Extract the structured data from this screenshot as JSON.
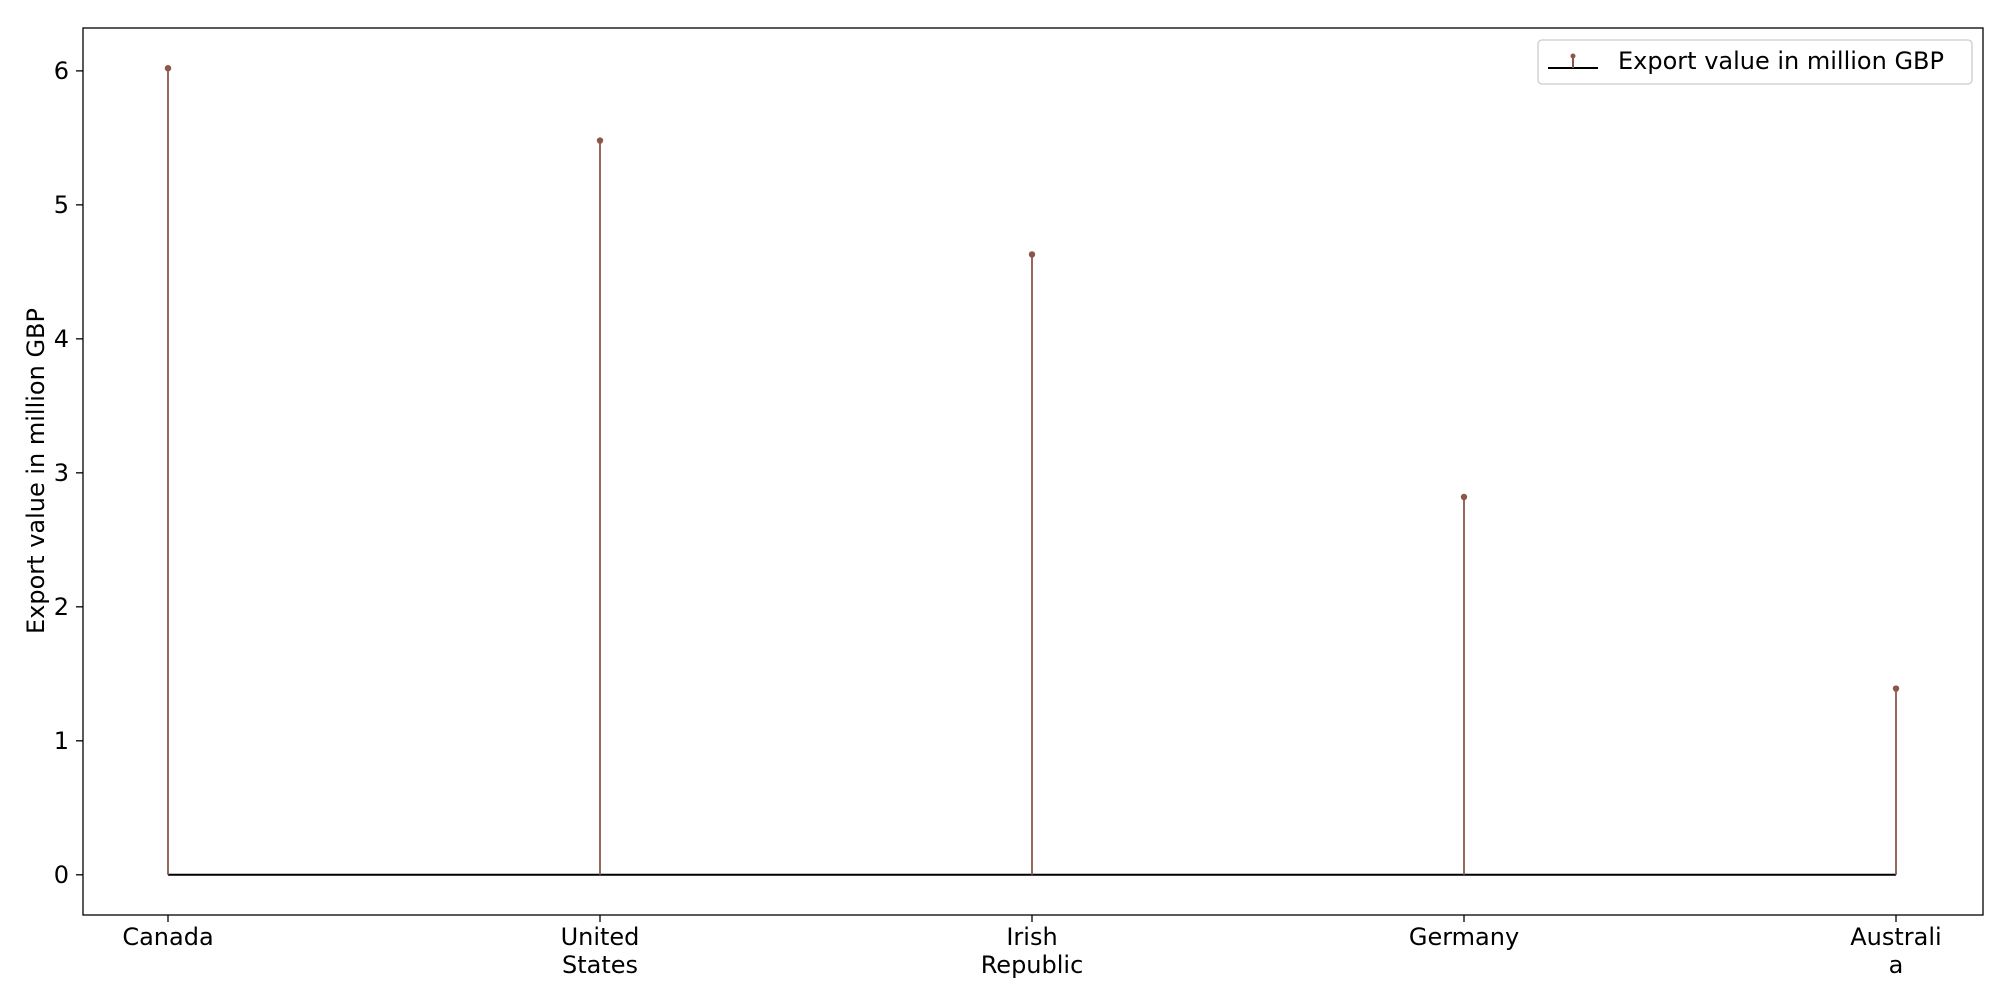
{
  "chart_data": {
    "type": "stem",
    "categories": [
      "Canada",
      "United States",
      "Irish Republic",
      "Germany",
      "Australia"
    ],
    "category_label_lines": [
      [
        "Canada"
      ],
      [
        "United",
        "States"
      ],
      [
        "Irish",
        "Republic"
      ],
      [
        "Germany"
      ],
      [
        "Australi",
        "a"
      ]
    ],
    "series": [
      {
        "name": "Export value in million GBP",
        "values": [
          6.02,
          5.48,
          4.63,
          2.82,
          1.39
        ]
      }
    ],
    "title": "",
    "xlabel": "",
    "ylabel": "Export value in million GBP",
    "ylim": [
      -0.3,
      6.32
    ],
    "yticks": [
      0,
      1,
      2,
      3,
      4,
      5,
      6
    ],
    "ytick_labels": [
      "0",
      "1",
      "2",
      "3",
      "4",
      "5",
      "6"
    ],
    "baseline": 0,
    "grid": false,
    "legend_position": "top-right",
    "colors": {
      "stem": "#8c564b",
      "baseline": "#000000",
      "axes": "#000000"
    }
  }
}
